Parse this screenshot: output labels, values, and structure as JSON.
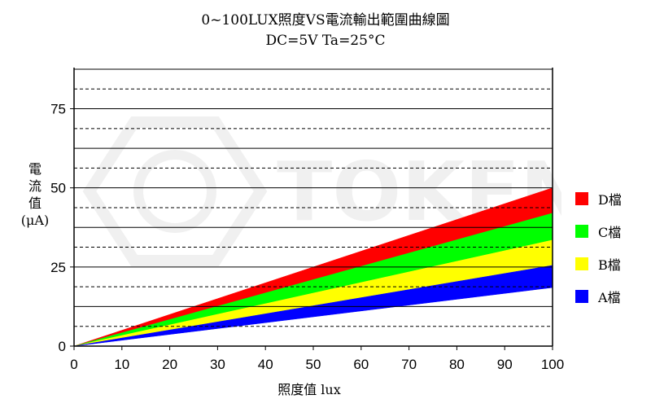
{
  "title": "0~100LUX照度VS電流輸出範圍曲線圖",
  "subtitle": "DC=5V   Ta=25°C",
  "watermark_text": "TOKEN",
  "chart_data": {
    "type": "area",
    "title": "0~100LUX照度VS電流輸出範圍曲線圖",
    "subtitle": "DC=5V   Ta=25°C",
    "xlabel": "照度值   lux",
    "ylabel": "電流值 (μA)",
    "ylabel_lines": [
      "電",
      "流",
      "值",
      "(μA)"
    ],
    "xlim": [
      0,
      100
    ],
    "ylim": [
      0,
      88
    ],
    "x_ticks": [
      0,
      10,
      20,
      30,
      40,
      50,
      60,
      70,
      80,
      90,
      100
    ],
    "y_ticks": [
      0,
      25,
      50,
      75
    ],
    "grid_solid": [
      12.5,
      25,
      37.5,
      50,
      62.5,
      75,
      87.5
    ],
    "grid_dashed": [
      6.25,
      18.75,
      31.25,
      43.75,
      56.25,
      68.75,
      81.25
    ],
    "legend_position": "right",
    "x": [
      0,
      100
    ],
    "series": [
      {
        "name": "D檔",
        "color": "#ff0000",
        "lower": [
          0,
          42
        ],
        "upper": [
          0,
          50
        ]
      },
      {
        "name": "C檔",
        "color": "#00ff00",
        "lower": [
          0,
          33.5
        ],
        "upper": [
          0,
          42
        ]
      },
      {
        "name": "B檔",
        "color": "#ffff00",
        "lower": [
          0,
          25.5
        ],
        "upper": [
          0,
          33.5
        ]
      },
      {
        "name": "A檔",
        "color": "#0000ff",
        "lower": [
          0,
          18.5
        ],
        "upper": [
          0,
          25.5
        ]
      }
    ]
  }
}
